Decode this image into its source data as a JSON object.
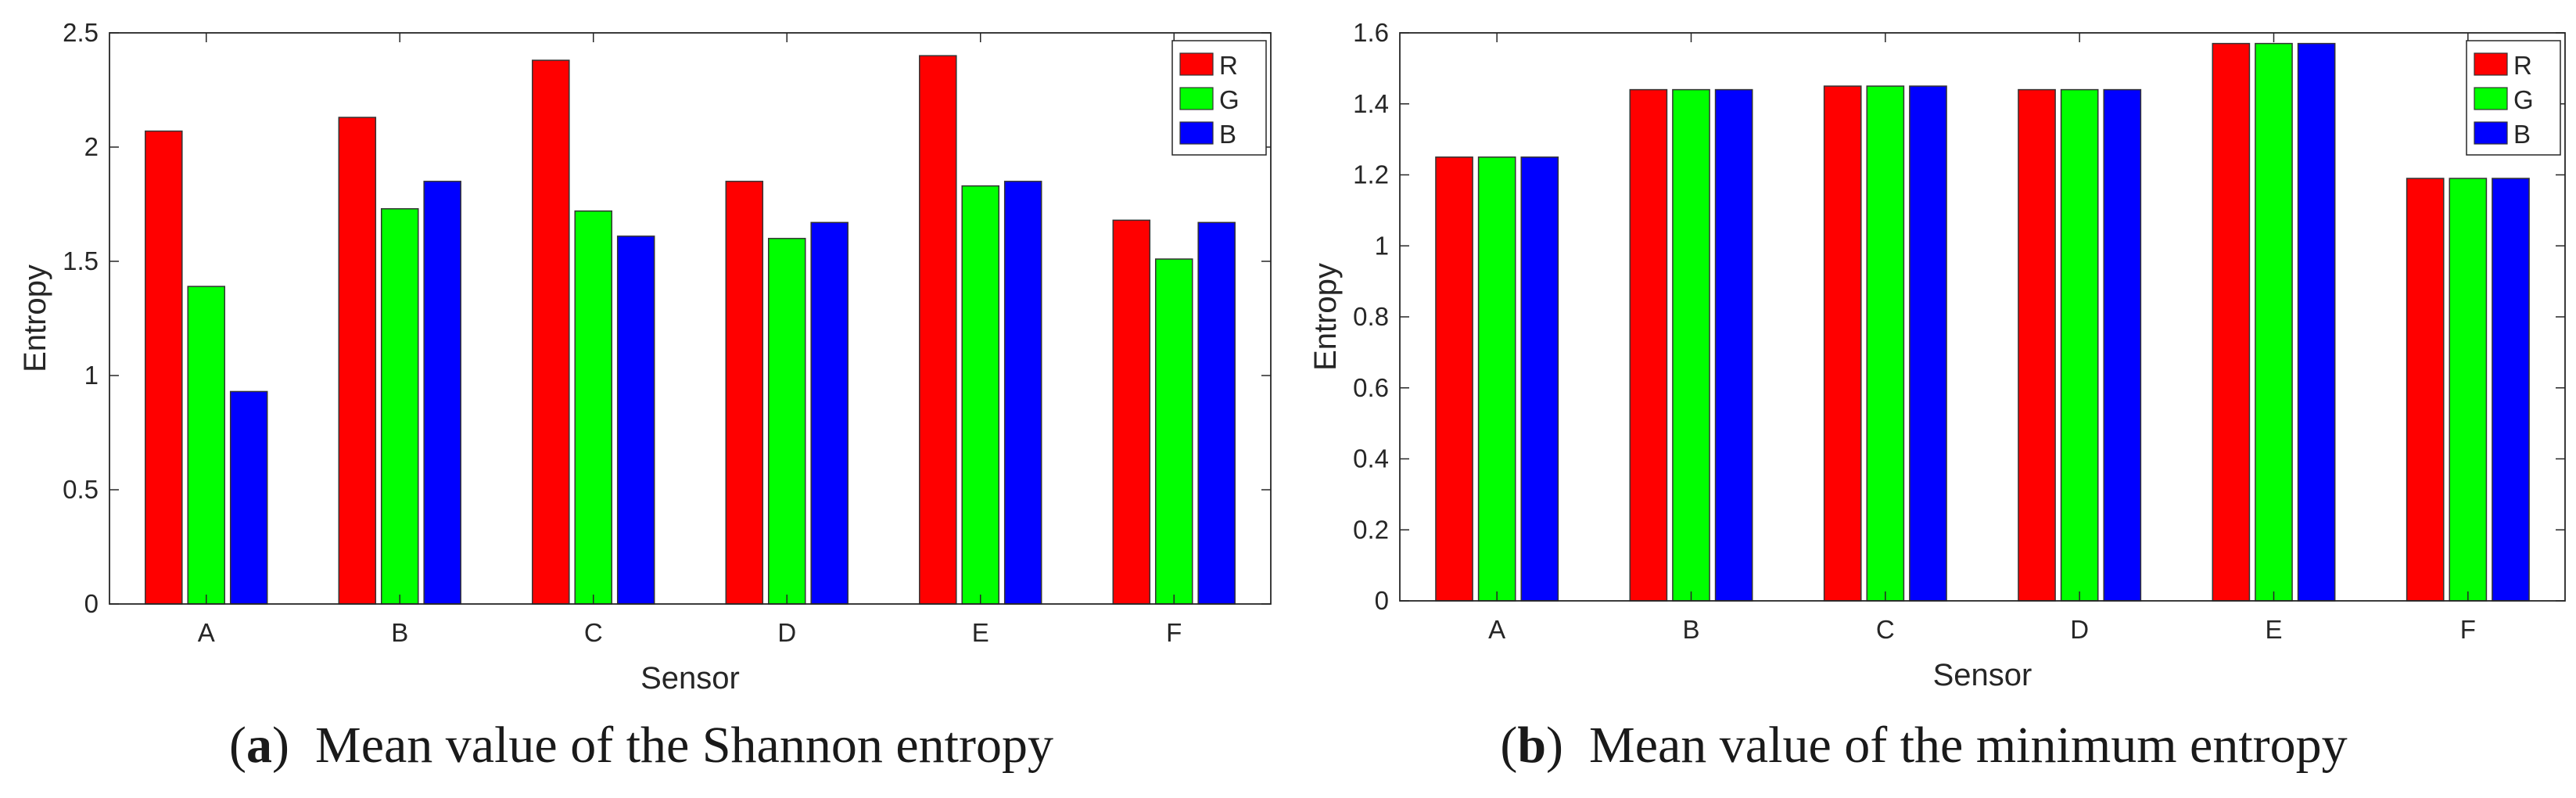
{
  "chart_data": [
    {
      "type": "bar",
      "xlabel": "Sensor",
      "ylabel": "Entropy",
      "ylim": [
        0,
        2.5
      ],
      "yticks": [
        0,
        0.5,
        1,
        1.5,
        2,
        2.5
      ],
      "ytick_labels": [
        "0",
        "0.5",
        "1",
        "1.5",
        "2",
        "2.5"
      ],
      "categories": [
        "A",
        "B",
        "C",
        "D",
        "E",
        "F"
      ],
      "series": [
        {
          "name": "R",
          "color": "#ff0000",
          "values": [
            2.07,
            2.13,
            2.38,
            1.85,
            2.4,
            1.68
          ]
        },
        {
          "name": "G",
          "color": "#00ff00",
          "values": [
            1.39,
            1.73,
            1.72,
            1.6,
            1.83,
            1.51
          ]
        },
        {
          "name": "B",
          "color": "#0000ff",
          "values": [
            0.93,
            1.85,
            1.61,
            1.67,
            1.85,
            1.67
          ]
        }
      ],
      "legend_position": "top-right",
      "caption_label": "a",
      "caption_text": "Mean value of the Shannon entropy"
    },
    {
      "type": "bar",
      "xlabel": "Sensor",
      "ylabel": "Entropy",
      "ylim": [
        0,
        1.6
      ],
      "yticks": [
        0,
        0.2,
        0.4,
        0.6,
        0.8,
        1,
        1.2,
        1.4,
        1.6
      ],
      "ytick_labels": [
        "0",
        "0.2",
        "0.4",
        "0.6",
        "0.8",
        "1",
        "1.2",
        "1.4",
        "1.6"
      ],
      "categories": [
        "A",
        "B",
        "C",
        "D",
        "E",
        "F"
      ],
      "series": [
        {
          "name": "R",
          "color": "#ff0000",
          "values": [
            1.25,
            1.44,
            1.45,
            1.44,
            1.57,
            1.19
          ]
        },
        {
          "name": "G",
          "color": "#00ff00",
          "values": [
            1.25,
            1.44,
            1.45,
            1.44,
            1.57,
            1.19
          ]
        },
        {
          "name": "B",
          "color": "#0000ff",
          "values": [
            1.25,
            1.44,
            1.45,
            1.44,
            1.57,
            1.19
          ]
        }
      ],
      "legend_position": "top-right",
      "caption_label": "b",
      "caption_text": "Mean value of the minimum entropy"
    }
  ]
}
